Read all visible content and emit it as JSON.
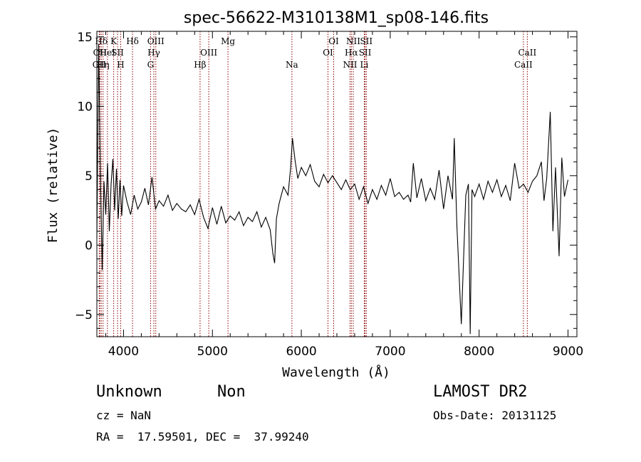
{
  "chart_data": {
    "type": "line",
    "title": "spec-56622-M310138M1_sp08-146.fits",
    "xlabel": "Wavelength (Å)",
    "ylabel": "Flux (relative)",
    "xlim": [
      3700,
      9100
    ],
    "ylim": [
      -6.6,
      15.4
    ],
    "x_ticks": [
      4000,
      5000,
      6000,
      7000,
      8000,
      9000
    ],
    "y_ticks": [
      -5,
      0,
      5,
      10,
      15
    ],
    "grid": false,
    "series": [
      {
        "x": [
          3700,
          3720,
          3740,
          3760,
          3780,
          3800,
          3820,
          3840,
          3860,
          3880,
          3900,
          3920,
          3940,
          3960,
          3980,
          4000,
          4040,
          4080,
          4120,
          4160,
          4200,
          4240,
          4280,
          4320,
          4360,
          4400,
          4450,
          4500,
          4550,
          4600,
          4650,
          4700,
          4750,
          4800,
          4850,
          4900,
          4950,
          5000,
          5050,
          5100,
          5150,
          5200,
          5250,
          5300,
          5350,
          5400,
          5450,
          5500,
          5550,
          5600,
          5650,
          5680,
          5700,
          5720,
          5750,
          5800,
          5850,
          5880,
          5900,
          5930,
          5960,
          6000,
          6050,
          6100,
          6150,
          6200,
          6250,
          6300,
          6350,
          6400,
          6450,
          6500,
          6550,
          6600,
          6650,
          6700,
          6750,
          6800,
          6850,
          6900,
          6950,
          7000,
          7050,
          7100,
          7150,
          7200,
          7230,
          7260,
          7300,
          7350,
          7400,
          7450,
          7500,
          7550,
          7600,
          7650,
          7700,
          7720,
          7750,
          7800,
          7850,
          7880,
          7900,
          7920,
          7950,
          8000,
          8050,
          8100,
          8150,
          8200,
          8250,
          8300,
          8350,
          8400,
          8450,
          8500,
          8550,
          8600,
          8650,
          8700,
          8730,
          8760,
          8800,
          8830,
          8860,
          8900,
          8930,
          8960,
          9000
        ],
        "y": [
          0.5,
          14.5,
          5.1,
          -1.8,
          4.6,
          2.2,
          5.9,
          1.0,
          4.4,
          6.2,
          2.5,
          5.5,
          1.9,
          4.7,
          2.1,
          4.3,
          3.1,
          2.2,
          3.6,
          2.6,
          3.1,
          4.1,
          2.9,
          4.9,
          2.6,
          3.2,
          2.8,
          3.6,
          2.5,
          3.0,
          2.6,
          2.4,
          2.9,
          2.2,
          3.3,
          2.0,
          1.2,
          2.7,
          1.5,
          2.8,
          1.6,
          2.1,
          1.8,
          2.4,
          1.4,
          2.0,
          1.7,
          2.4,
          1.3,
          2.0,
          1.1,
          -0.6,
          -1.3,
          1.9,
          3.0,
          4.2,
          3.6,
          5.6,
          7.7,
          6.1,
          4.8,
          5.6,
          5.0,
          5.8,
          4.6,
          4.2,
          5.1,
          4.5,
          5.0,
          4.5,
          4.0,
          4.7,
          4.0,
          4.4,
          3.3,
          4.2,
          3.0,
          4.0,
          3.3,
          4.3,
          3.6,
          4.8,
          3.5,
          3.8,
          3.3,
          3.6,
          3.1,
          5.9,
          3.4,
          4.8,
          3.2,
          4.1,
          3.3,
          5.4,
          2.6,
          5.0,
          3.3,
          7.7,
          1.4,
          -5.7,
          3.6,
          4.4,
          -6.4,
          4.0,
          3.5,
          4.4,
          3.3,
          4.6,
          3.8,
          4.7,
          3.5,
          4.3,
          3.2,
          5.9,
          4.1,
          4.4,
          3.8,
          4.6,
          5.0,
          6.0,
          3.2,
          4.8,
          9.6,
          1.0,
          5.6,
          -0.8,
          6.3,
          3.5,
          4.7
        ]
      }
    ],
    "lines": [
      {
        "wl": 3727,
        "label": "OII",
        "row": 2
      },
      {
        "wl": 3734,
        "label": "OII",
        "row": 1
      },
      {
        "wl": 3750,
        "label": "Hδ",
        "row": 0
      },
      {
        "wl": 3770,
        "label": "Hη",
        "row": 2
      },
      {
        "wl": 3819,
        "label": "HeI",
        "row": 1
      },
      {
        "wl": 3889,
        "label": "K",
        "row": 0
      },
      {
        "wl": 3933,
        "label": "SII",
        "row": 1
      },
      {
        "wl": 3968,
        "label": "H",
        "row": 2
      },
      {
        "wl": 4101,
        "label": "Hδ",
        "row": 0
      },
      {
        "wl": 4304,
        "label": "G",
        "row": 2
      },
      {
        "wl": 4341,
        "label": "Hγ",
        "row": 1
      },
      {
        "wl": 4363,
        "label": "OIII",
        "row": 0
      },
      {
        "wl": 4861,
        "label": "Hβ",
        "row": 2
      },
      {
        "wl": 4959,
        "label": "OIII",
        "row": 1
      },
      {
        "wl": 5175,
        "label": "Mg",
        "row": 0
      },
      {
        "wl": 5894,
        "label": "Na",
        "row": 2
      },
      {
        "wl": 6300,
        "label": "OI",
        "row": 1
      },
      {
        "wl": 6364,
        "label": "OI",
        "row": 0
      },
      {
        "wl": 6548,
        "label": "NII",
        "row": 2
      },
      {
        "wl": 6563,
        "label": "Hα",
        "row": 1
      },
      {
        "wl": 6584,
        "label": "NII",
        "row": 0
      },
      {
        "wl": 6708,
        "label": "Li",
        "row": 2
      },
      {
        "wl": 6717,
        "label": "SII",
        "row": 1
      },
      {
        "wl": 6731,
        "label": "SII",
        "row": 0
      },
      {
        "wl": 8498,
        "label": "CaII",
        "row": 2
      },
      {
        "wl": 8542,
        "label": "CaII",
        "row": 1
      }
    ],
    "line_color": "#8b0000"
  },
  "footer": {
    "object_class": "Unknown",
    "subclass": "Non",
    "survey": "LAMOST DR2",
    "redshift": "cz = NaN",
    "obs_date": "Obs-Date: 20131125",
    "coords": "RA =  17.59501, DEC =  37.99240"
  }
}
